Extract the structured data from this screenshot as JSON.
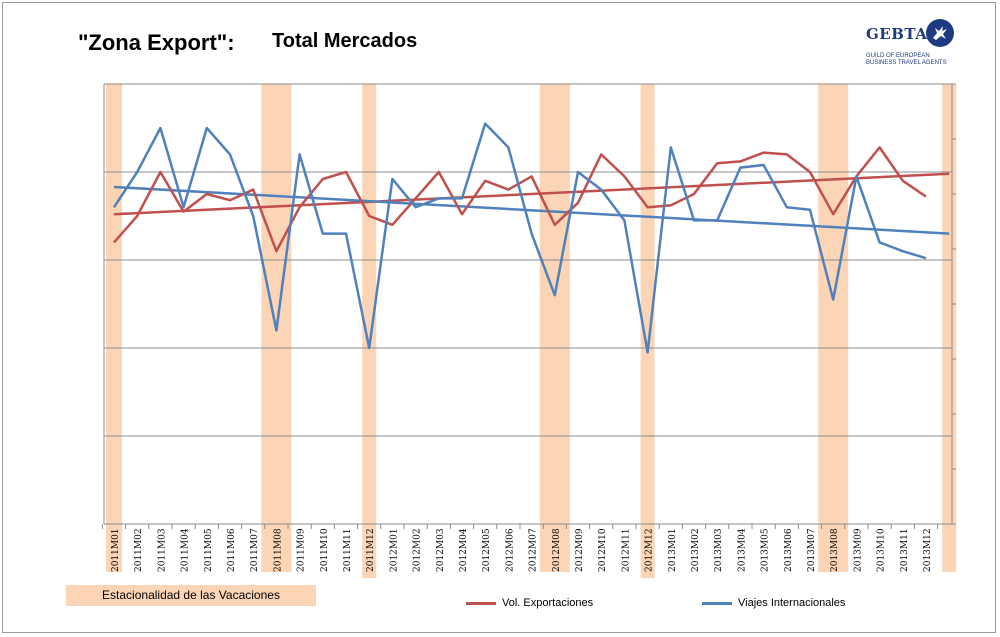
{
  "header": {
    "title_left": "\"Zona Export\":",
    "title_right": "Total Mercados"
  },
  "logo": {
    "word": "GEBTA",
    "tagline_1": "GUILD OF EUROPEAN",
    "tagline_2": "BUSINESS TRAVEL AGENTS",
    "icon": "pegasus-icon",
    "color": "#1e3a80"
  },
  "legend": {
    "seasonality_label": "Estacionalidad de las Vacaciones",
    "seasonality_color": "#fbd5b5",
    "series_1_label": "Vol. Exportaciones",
    "series_2_label": "Viajes Internacionales"
  },
  "chart_data": {
    "type": "line",
    "categories": [
      "2011M01",
      "2011M02",
      "2011M03",
      "2011M04",
      "2011M05",
      "2011M06",
      "2011M07",
      "2011M08",
      "2011M09",
      "2011M10",
      "2011M11",
      "2011M12",
      "2012M01",
      "2012M02",
      "2012M03",
      "2012M04",
      "2012M05",
      "2012M06",
      "2012M07",
      "2012M08",
      "2012M09",
      "2012M10",
      "2012M11",
      "2012M12",
      "2013M01",
      "2013M02",
      "2013M03",
      "2013M04",
      "2013M05",
      "2013M06",
      "2013M07",
      "2013M08",
      "2013M09",
      "2013M10",
      "2013M11",
      "2013M12"
    ],
    "series": [
      {
        "name": "Vol. Exportaciones",
        "color": "#c0504d",
        "values": [
          3.2,
          3.5,
          4.0,
          3.55,
          3.75,
          3.68,
          3.8,
          3.1,
          3.6,
          3.92,
          4.0,
          3.5,
          3.4,
          3.7,
          4.0,
          3.52,
          3.9,
          3.8,
          3.95,
          3.4,
          3.65,
          4.2,
          3.95,
          3.6,
          3.62,
          3.75,
          4.1,
          4.12,
          4.22,
          4.2,
          4.0,
          3.52,
          3.95,
          4.28,
          3.9,
          3.72
        ]
      },
      {
        "name": "Viajes Internacionales",
        "color": "#4f81bd",
        "values": [
          3.6,
          4.0,
          4.5,
          3.6,
          4.5,
          4.2,
          3.5,
          2.2,
          4.2,
          3.3,
          3.3,
          2.0,
          3.92,
          3.6,
          3.7,
          3.7,
          4.55,
          4.28,
          3.3,
          2.6,
          4.0,
          3.8,
          3.45,
          1.95,
          4.28,
          3.45,
          3.45,
          4.05,
          4.08,
          3.6,
          3.57,
          2.55,
          3.95,
          3.2,
          3.1,
          3.02
        ]
      }
    ],
    "trendlines": [
      {
        "series": "Vol. Exportaciones",
        "start": 3.52,
        "end": 3.98,
        "color": "#c0504d"
      },
      {
        "series": "Viajes Internacionales",
        "start": 3.83,
        "end": 3.3,
        "color": "#4f81bd"
      }
    ],
    "seasonality_bands": [
      "2011M01",
      "2011M08",
      "2011M12",
      "2012M08",
      "2012M12",
      "2013M08",
      "2014M01"
    ],
    "ylim": [
      0,
      5
    ],
    "grid": true,
    "xlabel": "",
    "ylabel": ""
  }
}
